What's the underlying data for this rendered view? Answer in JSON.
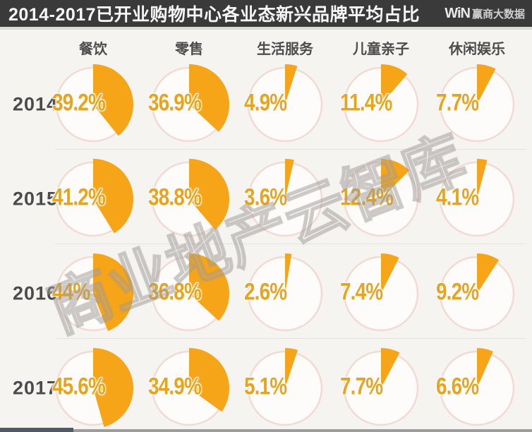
{
  "header": {
    "title": "2014-2017已开业购物中心各业态新兴品牌平均占比",
    "logo": {
      "win": "WiN",
      "text": "赢商大数据"
    }
  },
  "columns": [
    "餐饮",
    "零售",
    "生活服务",
    "儿童亲子",
    "休闲娱乐"
  ],
  "rows": [
    {
      "year": "2014",
      "labels": [
        "39.2%",
        "36.9%",
        "4.9%",
        "11.4%",
        "7.7%"
      ]
    },
    {
      "year": "2015",
      "labels": [
        "41.2%",
        "38.8%",
        "3.6%",
        "12.4%",
        "4.1%"
      ]
    },
    {
      "year": "2016",
      "labels": [
        "44%",
        "36.8%",
        "2.6%",
        "7.4%",
        "9.2%"
      ]
    },
    {
      "year": "2017",
      "labels": [
        "45.6%",
        "34.9%",
        "5.1%",
        "7.7%",
        "6.6%"
      ]
    }
  ],
  "watermark": "商业地产云智库",
  "colors": {
    "accent": "#F6A519",
    "pie_ring": "#F2DAD5",
    "pie_fill": "#FDFCFA",
    "percent_text": "#E8A41C",
    "header_bg": "#3A3A3A"
  },
  "chart_data": {
    "type": "pie",
    "title": "2014-2017已开业购物中心各业态新兴品牌平均占比",
    "categories": [
      "餐饮",
      "零售",
      "生活服务",
      "儿童亲子",
      "休闲娱乐"
    ],
    "series": [
      {
        "name": "2014",
        "values": [
          39.2,
          36.9,
          4.9,
          11.4,
          7.7
        ]
      },
      {
        "name": "2015",
        "values": [
          41.2,
          38.8,
          3.6,
          12.4,
          4.1
        ]
      },
      {
        "name": "2016",
        "values": [
          44,
          36.8,
          2.6,
          7.4,
          9.2
        ]
      },
      {
        "name": "2017",
        "values": [
          45.6,
          34.9,
          5.1,
          7.7,
          6.6
        ]
      }
    ],
    "unit": "%",
    "layout": "4x5 grid of single-slice pies; slice starts at 12 o'clock, clockwise; value label inside left of each circle"
  }
}
